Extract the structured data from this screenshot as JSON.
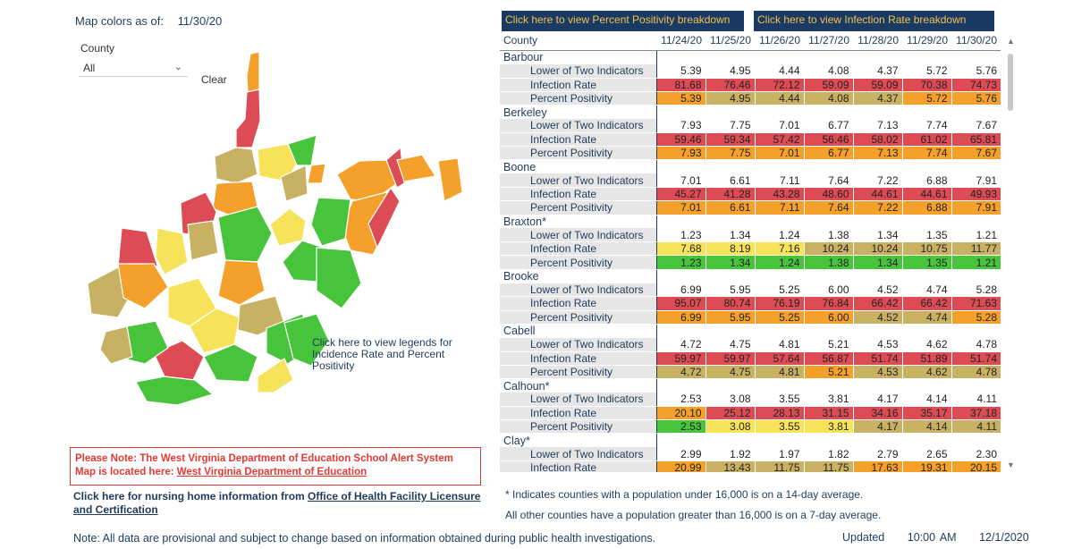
{
  "map_header": {
    "label": "Map colors as of:",
    "date": "11/30/20"
  },
  "county_filter": {
    "label": "County",
    "value": "All",
    "clear": "Clear"
  },
  "map_legend_link": "Click here to view legends for Incidence Rate and Percent Positivity",
  "alert": {
    "text": "Please Note: The West Virginia Department of Education School Alert System Map is located here: ",
    "link": "West Virginia Department of Education"
  },
  "nursing": {
    "text": "Click here for nursing home information from ",
    "link": "Office of Health Facility Licensure and Certification"
  },
  "note": "Note: All data are provisional and subject to change based on information obtained during public health investigations.",
  "updated": {
    "label": "Updated",
    "time": "10:00 AM",
    "date": "12/1/2020"
  },
  "buttons": {
    "positivity": "Click here to view Percent Positivity breakdown",
    "infection": "Click here to view Infection Rate breakdown"
  },
  "table": {
    "county_header": "County",
    "dates": [
      "11/24/20",
      "11/25/20",
      "11/26/20",
      "11/27/20",
      "11/28/20",
      "11/29/20",
      "11/30/20"
    ],
    "counties": [
      {
        "name": "Barbour",
        "rows": [
          {
            "label": "Lower of Two Indicators",
            "values": [
              "5.39",
              "4.95",
              "4.44",
              "4.08",
              "4.37",
              "5.72",
              "5.76"
            ],
            "colors": [
              "#ffffff",
              "#ffffff",
              "#ffffff",
              "#ffffff",
              "#ffffff",
              "#ffffff",
              "#ffffff"
            ]
          },
          {
            "label": "Infection Rate",
            "values": [
              "81.68",
              "76.46",
              "72.12",
              "59.09",
              "59.09",
              "70.38",
              "74.73"
            ],
            "colors": [
              "#dd4b55",
              "#dd4b55",
              "#dd4b55",
              "#dd4b55",
              "#dd4b55",
              "#dd4b55",
              "#dd4b55"
            ]
          },
          {
            "label": "Percent Positivity",
            "values": [
              "5.39",
              "4.95",
              "4.44",
              "4.08",
              "4.37",
              "5.72",
              "5.76"
            ],
            "colors": [
              "#f5a02a",
              "#c8b163",
              "#c8b163",
              "#c8b163",
              "#c8b163",
              "#f5a02a",
              "#f5a02a"
            ]
          }
        ]
      },
      {
        "name": "Berkeley",
        "rows": [
          {
            "label": "Lower of Two Indicators",
            "values": [
              "7.93",
              "7.75",
              "7.01",
              "6.77",
              "7.13",
              "7.74",
              "7.67"
            ],
            "colors": [
              "#ffffff",
              "#ffffff",
              "#ffffff",
              "#ffffff",
              "#ffffff",
              "#ffffff",
              "#ffffff"
            ]
          },
          {
            "label": "Infection Rate",
            "values": [
              "59.46",
              "59.34",
              "57.42",
              "56.46",
              "58.02",
              "61.02",
              "65.81"
            ],
            "colors": [
              "#dd4b55",
              "#dd4b55",
              "#dd4b55",
              "#dd4b55",
              "#dd4b55",
              "#dd4b55",
              "#dd4b55"
            ]
          },
          {
            "label": "Percent Positivity",
            "values": [
              "7.93",
              "7.75",
              "7.01",
              "6.77",
              "7.13",
              "7.74",
              "7.67"
            ],
            "colors": [
              "#f5a02a",
              "#f5a02a",
              "#f5a02a",
              "#f5a02a",
              "#f5a02a",
              "#f5a02a",
              "#f5a02a"
            ]
          }
        ]
      },
      {
        "name": "Boone",
        "rows": [
          {
            "label": "Lower of Two Indicators",
            "values": [
              "7.01",
              "6.61",
              "7.11",
              "7.64",
              "7.22",
              "6.88",
              "7.91"
            ],
            "colors": [
              "#ffffff",
              "#ffffff",
              "#ffffff",
              "#ffffff",
              "#ffffff",
              "#ffffff",
              "#ffffff"
            ]
          },
          {
            "label": "Infection Rate",
            "values": [
              "45.27",
              "41.28",
              "43.28",
              "48.60",
              "44.61",
              "44.61",
              "49.93"
            ],
            "colors": [
              "#dd4b55",
              "#dd4b55",
              "#dd4b55",
              "#dd4b55",
              "#dd4b55",
              "#dd4b55",
              "#dd4b55"
            ]
          },
          {
            "label": "Percent Positivity",
            "values": [
              "7.01",
              "6.61",
              "7.11",
              "7.64",
              "7.22",
              "6.88",
              "7.91"
            ],
            "colors": [
              "#f5a02a",
              "#f5a02a",
              "#f5a02a",
              "#f5a02a",
              "#f5a02a",
              "#f5a02a",
              "#f5a02a"
            ]
          }
        ]
      },
      {
        "name": "Braxton*",
        "rows": [
          {
            "label": "Lower of Two Indicators",
            "values": [
              "1.23",
              "1.34",
              "1.24",
              "1.38",
              "1.34",
              "1.35",
              "1.21"
            ],
            "colors": [
              "#ffffff",
              "#ffffff",
              "#ffffff",
              "#ffffff",
              "#ffffff",
              "#ffffff",
              "#ffffff"
            ]
          },
          {
            "label": "Infection Rate",
            "values": [
              "7.68",
              "8.19",
              "7.16",
              "10.24",
              "10.24",
              "10.75",
              "11.77"
            ],
            "colors": [
              "#f7e35a",
              "#f7e35a",
              "#f7e35a",
              "#c8b163",
              "#c8b163",
              "#c8b163",
              "#c8b163"
            ]
          },
          {
            "label": "Percent Positivity",
            "values": [
              "1.23",
              "1.34",
              "1.24",
              "1.38",
              "1.34",
              "1.35",
              "1.21"
            ],
            "colors": [
              "#47c43c",
              "#47c43c",
              "#47c43c",
              "#47c43c",
              "#47c43c",
              "#47c43c",
              "#47c43c"
            ]
          }
        ]
      },
      {
        "name": "Brooke",
        "rows": [
          {
            "label": "Lower of Two Indicators",
            "values": [
              "6.99",
              "5.95",
              "5.25",
              "6.00",
              "4.52",
              "4.74",
              "5.28"
            ],
            "colors": [
              "#ffffff",
              "#ffffff",
              "#ffffff",
              "#ffffff",
              "#ffffff",
              "#ffffff",
              "#ffffff"
            ]
          },
          {
            "label": "Infection Rate",
            "values": [
              "95.07",
              "80.74",
              "76.19",
              "76.84",
              "66.42",
              "66.42",
              "71.63"
            ],
            "colors": [
              "#dd4b55",
              "#dd4b55",
              "#dd4b55",
              "#dd4b55",
              "#dd4b55",
              "#dd4b55",
              "#dd4b55"
            ]
          },
          {
            "label": "Percent Positivity",
            "values": [
              "6.99",
              "5.95",
              "5.25",
              "6.00",
              "4.52",
              "4.74",
              "5.28"
            ],
            "colors": [
              "#f5a02a",
              "#f5a02a",
              "#f5a02a",
              "#f5a02a",
              "#c8b163",
              "#c8b163",
              "#f5a02a"
            ]
          }
        ]
      },
      {
        "name": "Cabell",
        "rows": [
          {
            "label": "Lower of Two Indicators",
            "values": [
              "4.72",
              "4.75",
              "4.81",
              "5.21",
              "4.53",
              "4.62",
              "4.78"
            ],
            "colors": [
              "#ffffff",
              "#ffffff",
              "#ffffff",
              "#ffffff",
              "#ffffff",
              "#ffffff",
              "#ffffff"
            ]
          },
          {
            "label": "Infection Rate",
            "values": [
              "59.97",
              "59.97",
              "57.64",
              "56.87",
              "51.74",
              "51.89",
              "51.74"
            ],
            "colors": [
              "#dd4b55",
              "#dd4b55",
              "#dd4b55",
              "#dd4b55",
              "#dd4b55",
              "#dd4b55",
              "#dd4b55"
            ]
          },
          {
            "label": "Percent Positivity",
            "values": [
              "4.72",
              "4.75",
              "4.81",
              "5.21",
              "4.53",
              "4.62",
              "4.78"
            ],
            "colors": [
              "#c8b163",
              "#c8b163",
              "#c8b163",
              "#f5a02a",
              "#c8b163",
              "#c8b163",
              "#c8b163"
            ]
          }
        ]
      },
      {
        "name": "Calhoun*",
        "rows": [
          {
            "label": "Lower of Two Indicators",
            "values": [
              "2.53",
              "3.08",
              "3.55",
              "3.81",
              "4.17",
              "4.14",
              "4.11"
            ],
            "colors": [
              "#ffffff",
              "#ffffff",
              "#ffffff",
              "#ffffff",
              "#ffffff",
              "#ffffff",
              "#ffffff"
            ]
          },
          {
            "label": "Infection Rate",
            "values": [
              "20.10",
              "25.12",
              "28.13",
              "31.15",
              "34.16",
              "35.17",
              "37.18"
            ],
            "colors": [
              "#f5a02a",
              "#dd4b55",
              "#dd4b55",
              "#dd4b55",
              "#dd4b55",
              "#dd4b55",
              "#dd4b55"
            ]
          },
          {
            "label": "Percent Positivity",
            "values": [
              "2.53",
              "3.08",
              "3.55",
              "3.81",
              "4.17",
              "4.14",
              "4.11"
            ],
            "colors": [
              "#47c43c",
              "#f7e35a",
              "#f7e35a",
              "#f7e35a",
              "#c8b163",
              "#c8b163",
              "#c8b163"
            ]
          }
        ]
      },
      {
        "name": "Clay*",
        "rows": [
          {
            "label": "Lower of Two Indicators",
            "values": [
              "2.99",
              "1.92",
              "1.97",
              "1.82",
              "2.79",
              "2.65",
              "2.30"
            ],
            "colors": [
              "#ffffff",
              "#ffffff",
              "#ffffff",
              "#ffffff",
              "#ffffff",
              "#ffffff",
              "#ffffff"
            ]
          },
          {
            "label": "Infection Rate",
            "values": [
              "20.99",
              "13.43",
              "11.75",
              "11.75",
              "17.63",
              "19.31",
              "20.15"
            ],
            "colors": [
              "#f5a02a",
              "#c8b163",
              "#c8b163",
              "#c8b163",
              "#f5a02a",
              "#f5a02a",
              "#f5a02a"
            ]
          }
        ]
      }
    ]
  },
  "footnotes": [
    "* Indicates counties with a population under 16,000 is on a 14-day average.",
    "All other counties have a population greater than 16,000 is on a 7-day average."
  ],
  "colors": {
    "red": "#dd4b55",
    "orange": "#f5a02a",
    "gold": "#c8b163",
    "yellow": "#f7e35a",
    "green": "#47c43c",
    "navy": "#1a3a64"
  }
}
